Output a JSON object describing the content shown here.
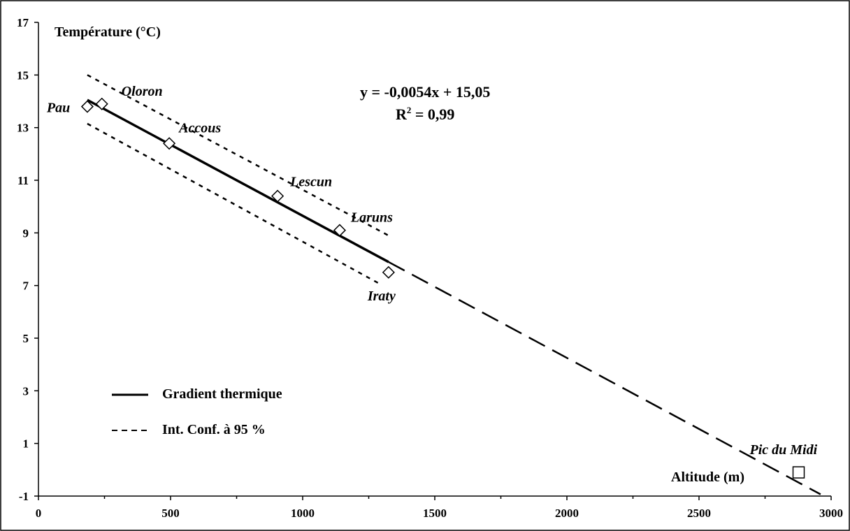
{
  "chart_data": {
    "type": "scatter",
    "xlabel": "Altitude (m)",
    "ylabel": "Température  (°C)",
    "xlim": [
      0,
      3000
    ],
    "ylim": [
      -1,
      17
    ],
    "x_ticks": [
      0,
      500,
      1000,
      1500,
      2000,
      2500,
      3000
    ],
    "y_ticks": [
      -1,
      1,
      3,
      5,
      7,
      9,
      11,
      13,
      15,
      17
    ],
    "grid": false,
    "legend_placement": "bottom-left",
    "points": [
      {
        "name": "Pau",
        "x": 185,
        "y": 13.8,
        "marker": "diamond"
      },
      {
        "name": "Oloron",
        "x": 240,
        "y": 13.9,
        "marker": "diamond"
      },
      {
        "name": "Accous",
        "x": 495,
        "y": 12.4,
        "marker": "diamond"
      },
      {
        "name": "Lescun",
        "x": 905,
        "y": 10.4,
        "marker": "diamond"
      },
      {
        "name": "Laruns",
        "x": 1140,
        "y": 9.1,
        "marker": "diamond"
      },
      {
        "name": "Iraty",
        "x": 1325,
        "y": 7.5,
        "marker": "diamond"
      },
      {
        "name": "Pic du Midi",
        "x": 2877,
        "y": -0.1,
        "marker": "square"
      }
    ],
    "regression": {
      "slope": -0.0054,
      "intercept": 15.05,
      "fit_range": [
        185,
        1325
      ],
      "extrapolated_to": 2960
    },
    "confidence_upper": [
      [
        185,
        15.0
      ],
      [
        1325,
        8.9
      ]
    ],
    "confidence_lower": [
      [
        185,
        13.15
      ],
      [
        1285,
        7.1
      ]
    ],
    "equation_line1": "y = -0,0054x + 15,05",
    "equation_r2_prefix": "R",
    "equation_r2_exp": "2",
    "equation_r2_suffix": " = 0,99",
    "legend": [
      {
        "label": "Gradient thermique",
        "style": "solid"
      },
      {
        "label": "Int. Conf. à 95 %",
        "style": "dashed"
      }
    ]
  }
}
